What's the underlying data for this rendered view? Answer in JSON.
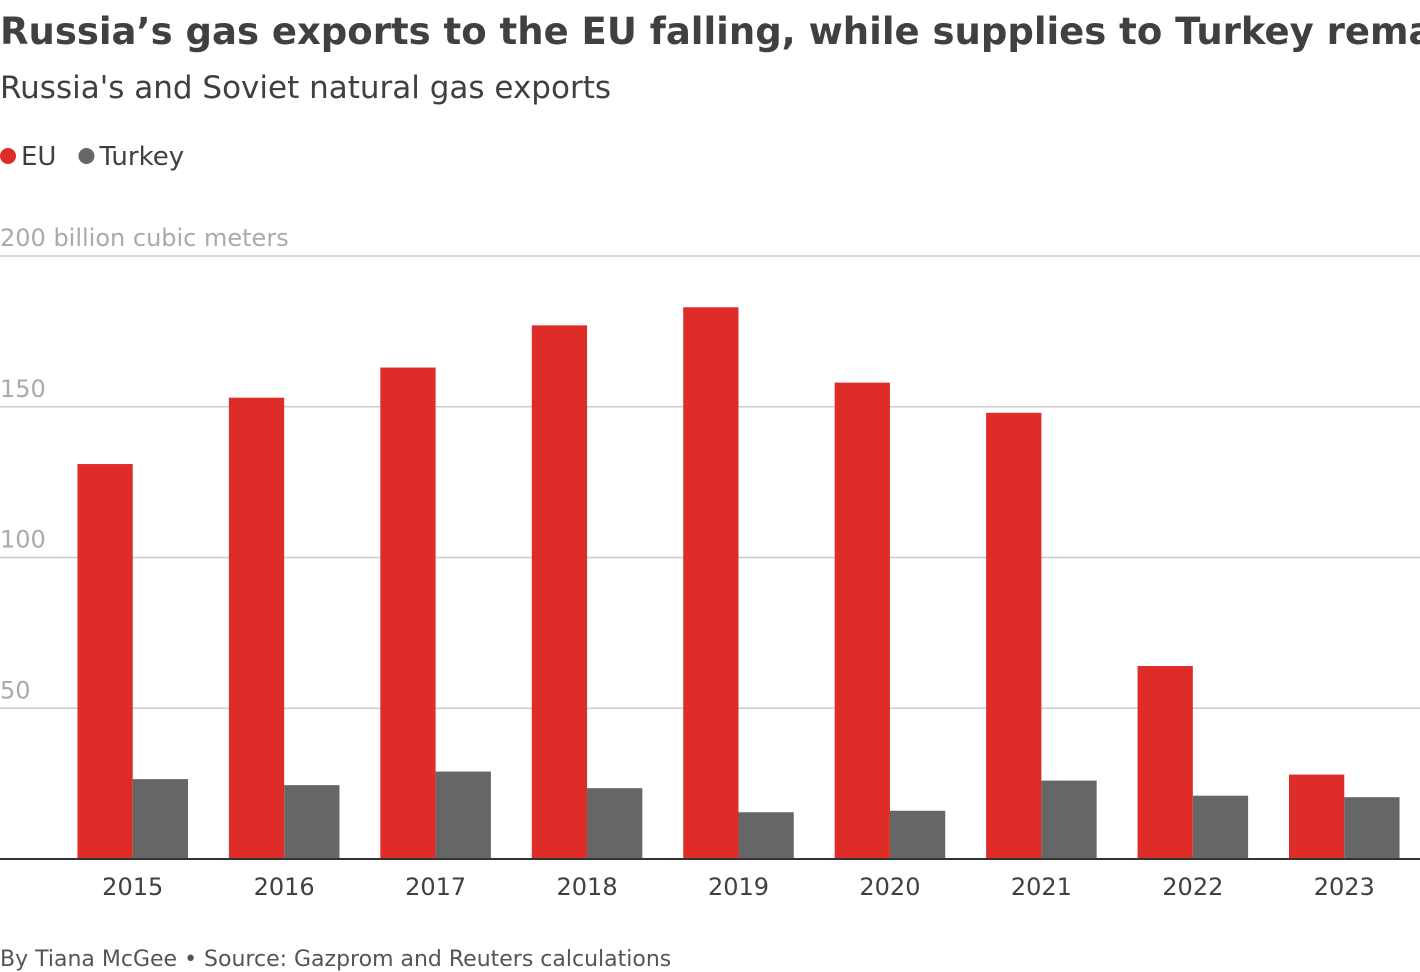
{
  "chart_data": {
    "type": "bar",
    "title": "Russia’s gas exports to the EU falling, while supplies to Turkey remain stable",
    "subtitle": "Russia's and Soviet natural gas exports",
    "categories": [
      "2015",
      "2016",
      "2017",
      "2018",
      "2019",
      "2020",
      "2021",
      "2022",
      "2023"
    ],
    "series": [
      {
        "name": "EU",
        "color": "#de2d28",
        "values": [
          131,
          153,
          163,
          177,
          183,
          158,
          148,
          64,
          28
        ]
      },
      {
        "name": "Turkey",
        "color": "#666666",
        "values": [
          26.5,
          24.5,
          29,
          23.5,
          15.5,
          16,
          26,
          21,
          20.5
        ]
      }
    ],
    "ylim": [
      0,
      200
    ],
    "yticks": [
      50,
      100,
      150,
      {
        "value": 200,
        "label": "200 billion cubic meters"
      }
    ],
    "grid": true,
    "legend": "top-left",
    "footer": "By Tiana McGee • Source: Gazprom and Reuters calculations"
  }
}
